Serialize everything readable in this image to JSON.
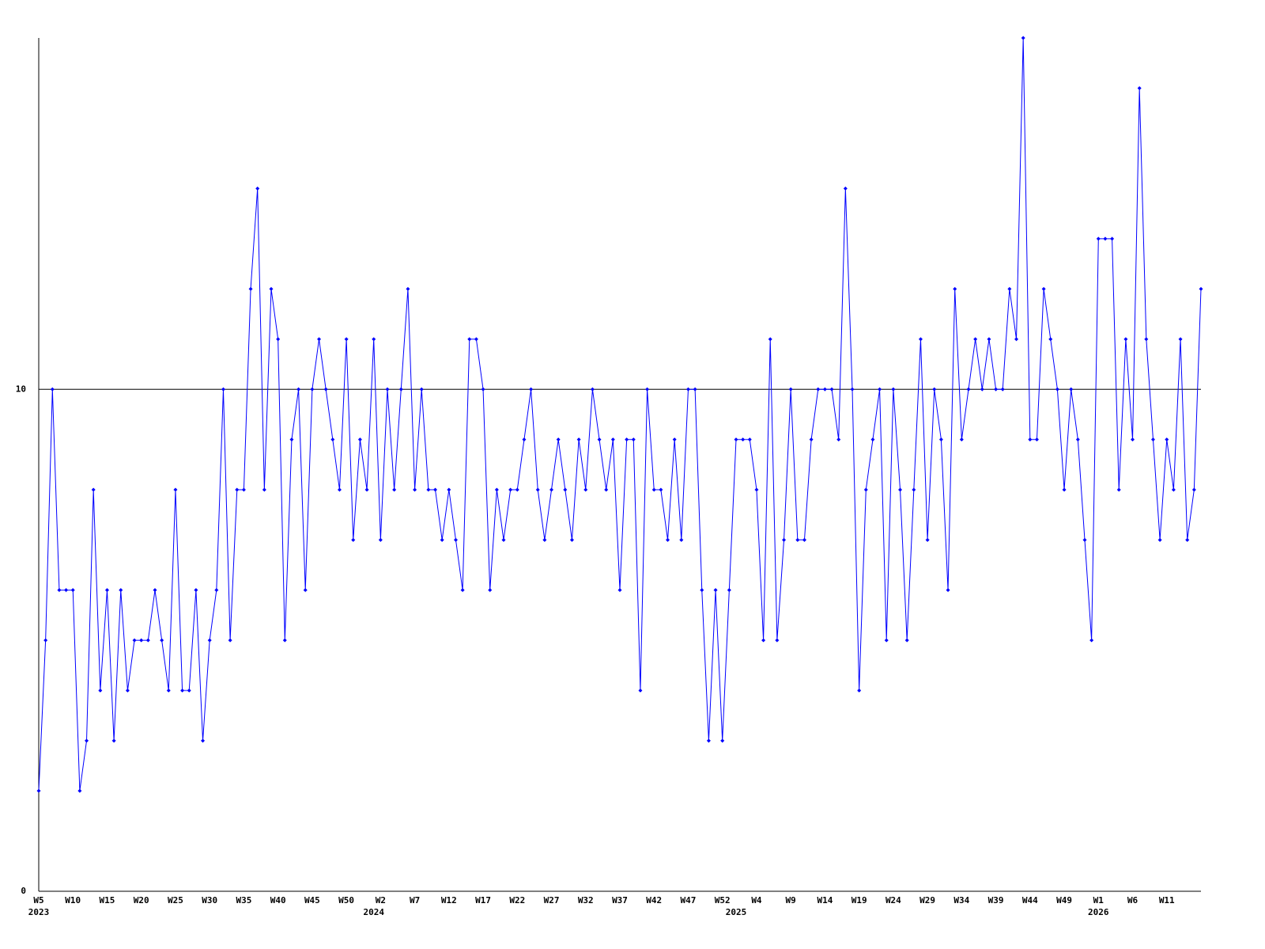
{
  "chart_data": {
    "type": "line",
    "categories": [
      "W5",
      null,
      null,
      null,
      null,
      "W10",
      null,
      null,
      null,
      null,
      "W15",
      null,
      null,
      null,
      null,
      "W20",
      null,
      null,
      null,
      null,
      "W25",
      null,
      null,
      null,
      null,
      "W30",
      null,
      null,
      null,
      null,
      "W35",
      null,
      null,
      null,
      null,
      "W40",
      null,
      null,
      null,
      null,
      "W45",
      null,
      null,
      null,
      null,
      "W50",
      null,
      null,
      null,
      null,
      "W2",
      null,
      null,
      null,
      null,
      "W7",
      null,
      null,
      null,
      null,
      "W12",
      null,
      null,
      null,
      null,
      "W17",
      null,
      null,
      null,
      null,
      "W22",
      null,
      null,
      null,
      null,
      "W27",
      null,
      null,
      null,
      null,
      "W32",
      null,
      null,
      null,
      null,
      "W37",
      null,
      null,
      null,
      null,
      "W42",
      null,
      null,
      null,
      null,
      "W47",
      null,
      null,
      null,
      null,
      "W52",
      null,
      null,
      null,
      null,
      "W4",
      null,
      null,
      null,
      null,
      "W9",
      null,
      null,
      null,
      null,
      "W14",
      null,
      null,
      null,
      null,
      "W19",
      null,
      null,
      null,
      null,
      "W24",
      null,
      null,
      null,
      null,
      "W29",
      null,
      null,
      null,
      null,
      "W34",
      null,
      null,
      null,
      null,
      "W39",
      null,
      null,
      null,
      null,
      "W44",
      null,
      null,
      null,
      null,
      "W49",
      null,
      null,
      null,
      null,
      "W1",
      null,
      null,
      null,
      null,
      "W6",
      null,
      null,
      null,
      null,
      "W11",
      null,
      null,
      null,
      null,
      null
    ],
    "x_group_labels": [
      "2023",
      null,
      null,
      null,
      null,
      null,
      null,
      null,
      null,
      null,
      null,
      null,
      null,
      null,
      null,
      null,
      null,
      null,
      null,
      null,
      null,
      null,
      null,
      null,
      null,
      null,
      null,
      null,
      null,
      null,
      null,
      null,
      null,
      null,
      null,
      null,
      null,
      null,
      null,
      null,
      null,
      null,
      null,
      null,
      null,
      null,
      null,
      null,
      null,
      "2024",
      null,
      null,
      null,
      null,
      null,
      null,
      null,
      null,
      null,
      null,
      null,
      null,
      null,
      null,
      null,
      null,
      null,
      null,
      null,
      null,
      null,
      null,
      null,
      null,
      null,
      null,
      null,
      null,
      null,
      null,
      null,
      null,
      null,
      null,
      null,
      null,
      null,
      null,
      null,
      null,
      null,
      null,
      null,
      null,
      null,
      null,
      null,
      null,
      null,
      null,
      null,
      null,
      "2025",
      null,
      null,
      null,
      null,
      null,
      null,
      null,
      null,
      null,
      null,
      null,
      null,
      null,
      null,
      null,
      null,
      null,
      null,
      null,
      null,
      null,
      null,
      null,
      null,
      null,
      null,
      null,
      null,
      null,
      null,
      null,
      null,
      null,
      null,
      null,
      null,
      null,
      null,
      null,
      null,
      null,
      null,
      null,
      null,
      null,
      null,
      null,
      null,
      null,
      null,
      null,
      null,
      "2026",
      null,
      null,
      null,
      null,
      null,
      null,
      null,
      null,
      null,
      null,
      null,
      null,
      null,
      null,
      null
    ],
    "series": [
      {
        "color": "#0000ff",
        "values": [
          2,
          5,
          10,
          6,
          6,
          6,
          2,
          3,
          8,
          4,
          6,
          3,
          6,
          4,
          5,
          5,
          5,
          6,
          5,
          4,
          8,
          4,
          4,
          6,
          3,
          5,
          6,
          10,
          5,
          8,
          8,
          12,
          14,
          8,
          12,
          11,
          5,
          9,
          10,
          6,
          10,
          11,
          10,
          9,
          8,
          11,
          7,
          9,
          8,
          11,
          7,
          10,
          8,
          10,
          12,
          8,
          10,
          8,
          8,
          7,
          8,
          7,
          6,
          11,
          11,
          10,
          6,
          8,
          7,
          8,
          8,
          9,
          10,
          8,
          7,
          8,
          9,
          8,
          7,
          9,
          8,
          10,
          9,
          8,
          9,
          6,
          9,
          9,
          4,
          10,
          8,
          8,
          7,
          9,
          7,
          10,
          10,
          6,
          3,
          6,
          3,
          6,
          9,
          9,
          9,
          8,
          5,
          11,
          5,
          7,
          10,
          7,
          7,
          9,
          10,
          10,
          10,
          9,
          14,
          10,
          4,
          8,
          9,
          10,
          5,
          10,
          8,
          5,
          8,
          11,
          7,
          10,
          9,
          6,
          12,
          9,
          10,
          11,
          10,
          11,
          10,
          10,
          12,
          11,
          17,
          9,
          9,
          12,
          11,
          10,
          8,
          10,
          9,
          7,
          5,
          13,
          13,
          13,
          8,
          11,
          9,
          16,
          11,
          9,
          7,
          9,
          8,
          11,
          7,
          8,
          12
        ]
      }
    ],
    "ylim": [
      0,
      17
    ],
    "yticks": [
      0,
      10
    ],
    "grid": true
  }
}
